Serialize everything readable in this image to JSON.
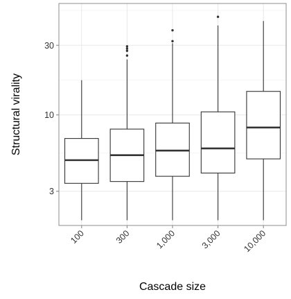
{
  "chart_data": {
    "type": "box",
    "xlabel": "Cascade size",
    "ylabel": "Structural virality",
    "y_scale": "log10",
    "ylim": [
      1.75,
      58
    ],
    "y_ticks": [
      3,
      10,
      30
    ],
    "y_tick_labels": [
      "3",
      "10",
      "30"
    ],
    "grid": true,
    "legend": "none",
    "colors": {
      "box_stroke": "#333333",
      "box_fill": "#ffffff",
      "median": "#333333",
      "grid_major": "#e8e8e8",
      "grid_minor": "#f4f4f4",
      "panel_border": "#8c8c8c"
    },
    "categories": [
      "100",
      "300",
      "1,000",
      "3,000",
      "10,000"
    ],
    "boxes": [
      {
        "category": "100",
        "whisker_low": 1.9,
        "q1": 3.4,
        "median": 4.9,
        "q3": 6.9,
        "whisker_high": 17.3,
        "outliers": []
      },
      {
        "category": "300",
        "whisker_low": 1.9,
        "q1": 3.5,
        "median": 5.3,
        "q3": 8.0,
        "whisker_high": 24.0,
        "outliers": [
          25.5,
          27.5,
          28.5,
          29.5
        ]
      },
      {
        "category": "1,000",
        "whisker_low": 1.9,
        "q1": 3.8,
        "median": 5.7,
        "q3": 8.8,
        "whisker_high": 31.0,
        "outliers": [
          32.0,
          38.0
        ]
      },
      {
        "category": "3,000",
        "whisker_low": 1.9,
        "q1": 4.0,
        "median": 5.9,
        "q3": 10.5,
        "whisker_high": 41.0,
        "outliers": [
          47.0
        ]
      },
      {
        "category": "10,000",
        "whisker_low": 1.9,
        "q1": 5.0,
        "median": 8.2,
        "q3": 14.5,
        "whisker_high": 44.0,
        "outliers": []
      }
    ]
  }
}
